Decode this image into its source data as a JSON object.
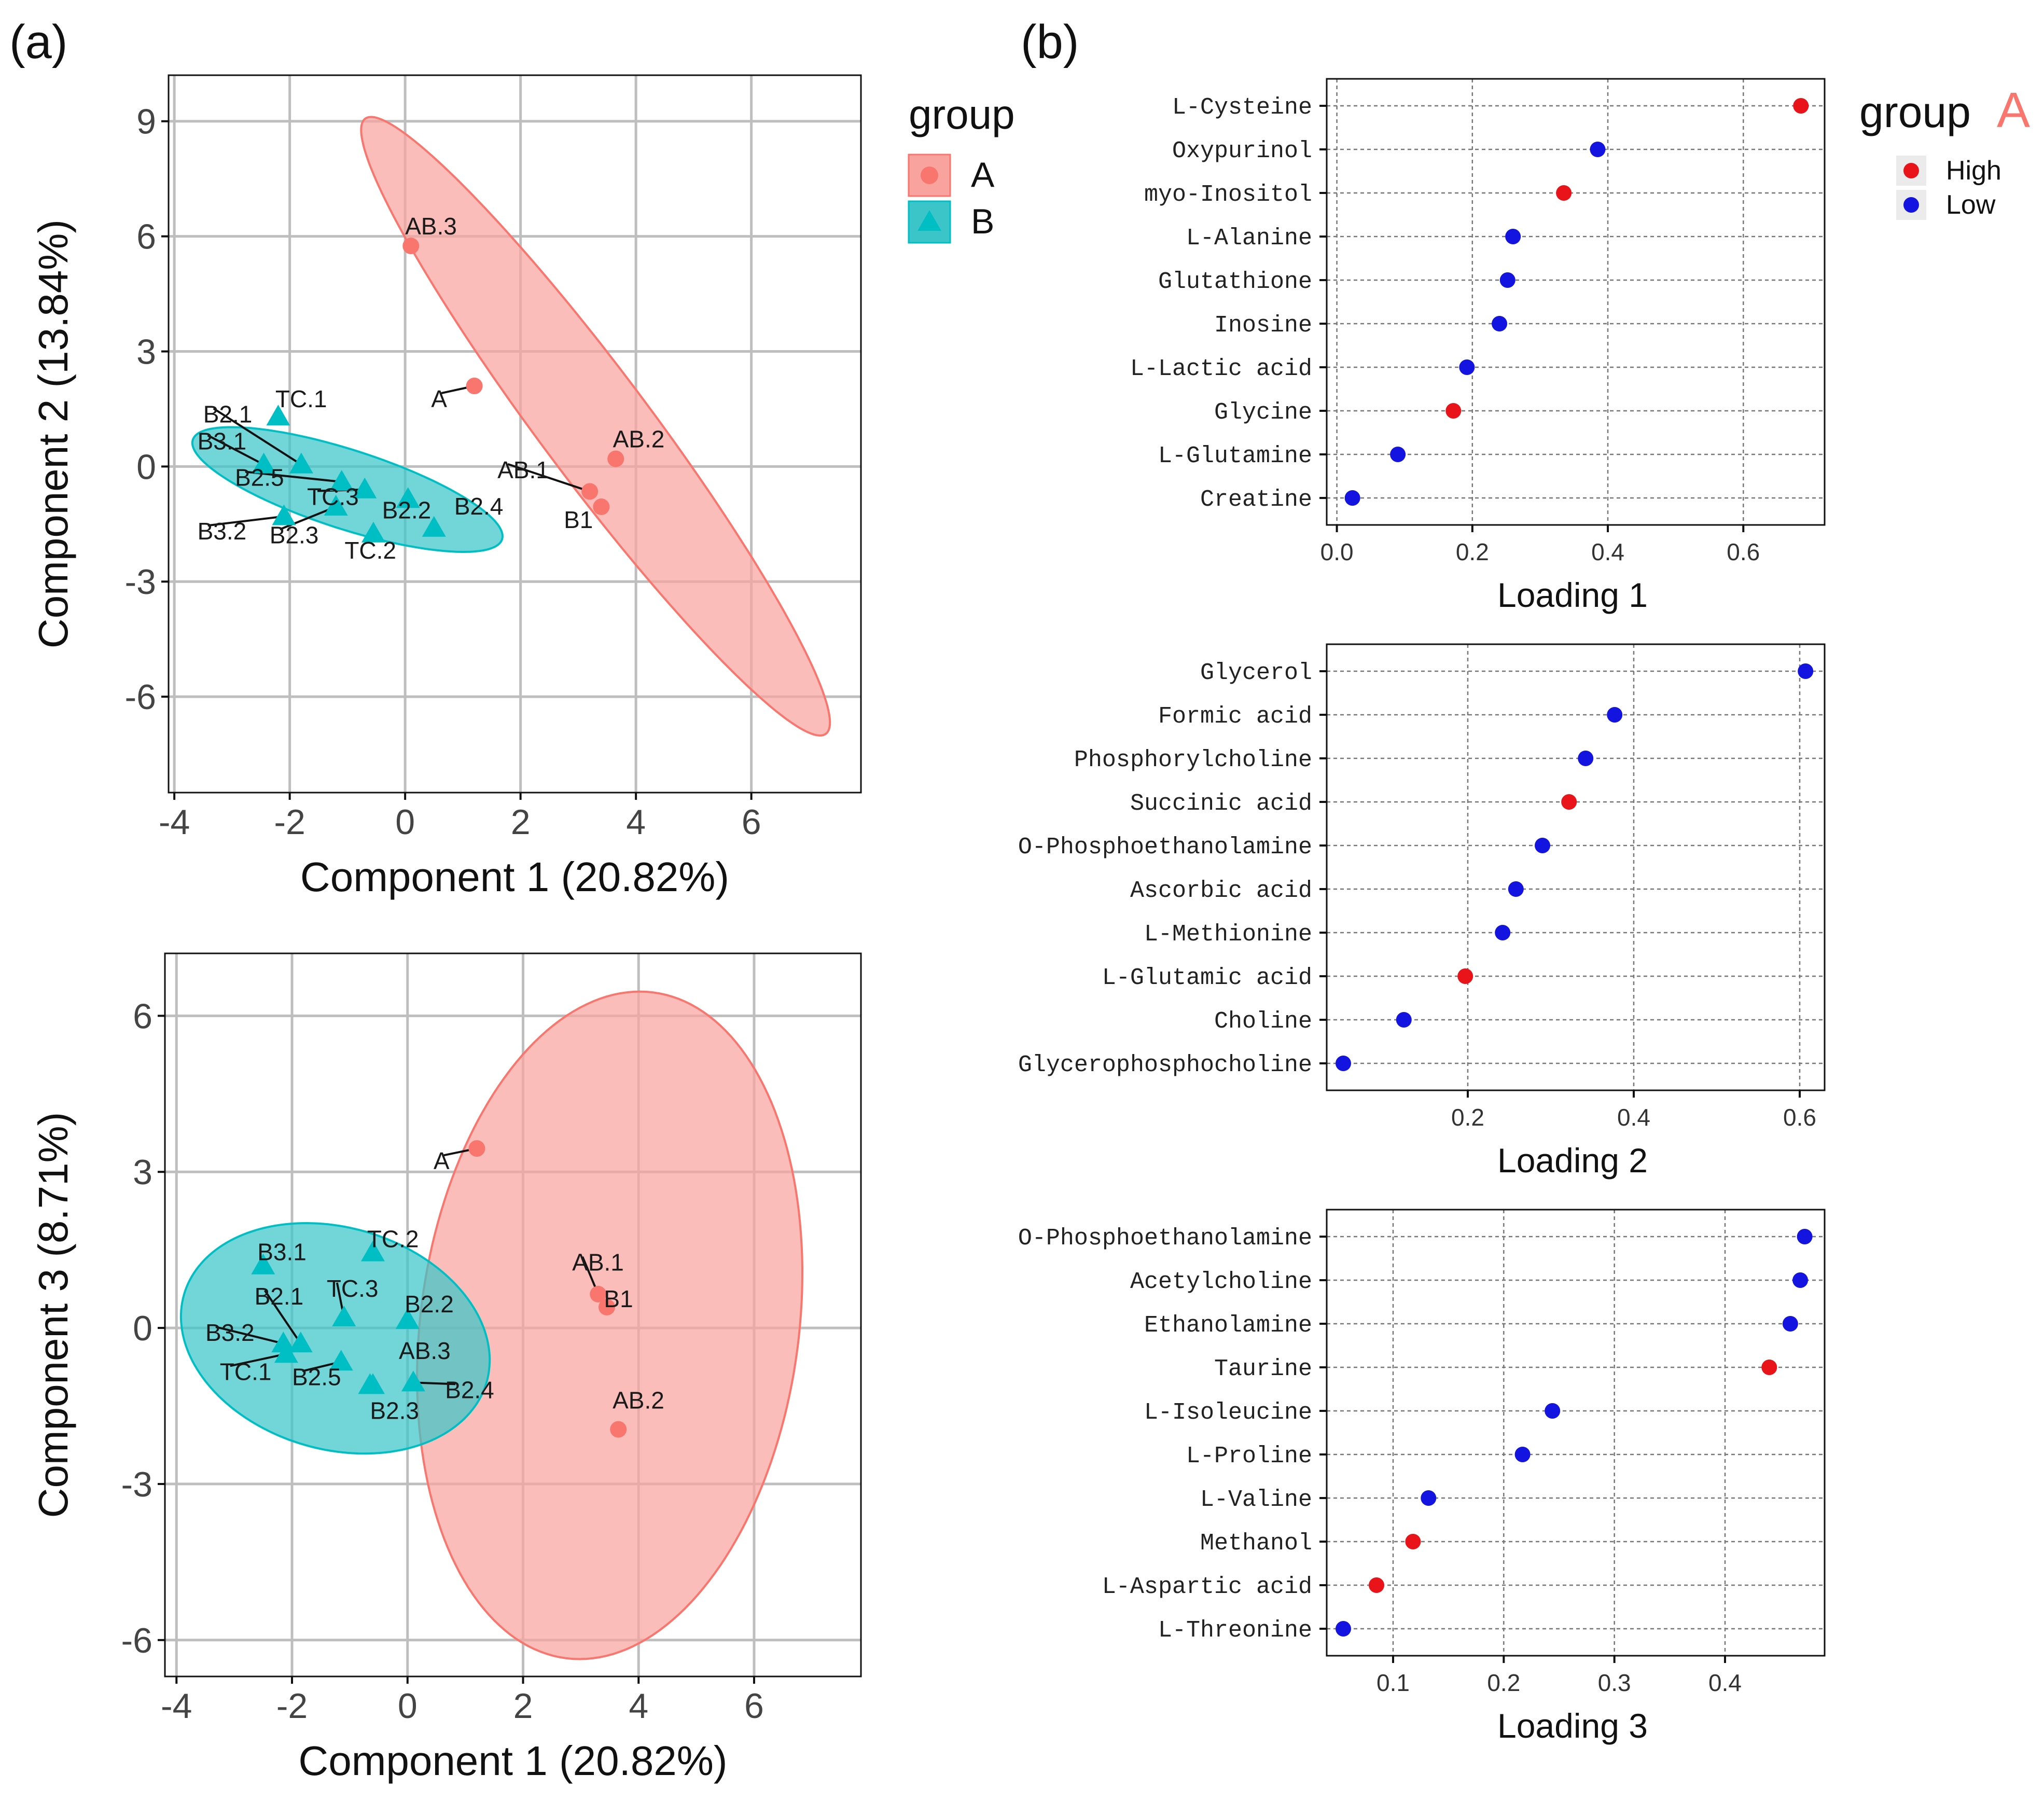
{
  "panel_labels": {
    "a": "(a)",
    "b": "(b)"
  },
  "colors": {
    "groupA": "#F8766D",
    "groupA_fill": "#F8A39E",
    "groupB": "#00BFC4",
    "groupB_fill": "#3CC5C8",
    "high": "#E8141A",
    "low": "#1414E0",
    "grid": "#BEBEBE",
    "axis": "#333333",
    "text": "#1a1a1a"
  },
  "legend_a": {
    "title": "group",
    "items": [
      {
        "label": "A",
        "shape": "circle"
      },
      {
        "label": "B",
        "shape": "triangle"
      }
    ]
  },
  "legend_b": {
    "title": "group",
    "title_group": "A",
    "items": [
      {
        "label": "High",
        "color": "high"
      },
      {
        "label": "Low",
        "color": "low"
      }
    ]
  },
  "chart_data": [
    {
      "type": "scatter",
      "id": "pca_c1_c2",
      "xlabel": "Component 1 (20.82%)",
      "ylabel": "Component 2 (13.84%)",
      "xlim": [
        -4.1,
        7.9
      ],
      "ylim": [
        -8.5,
        10.2
      ],
      "xticks": [
        -4,
        -2,
        0,
        2,
        4,
        6
      ],
      "yticks": [
        -6,
        -3,
        0,
        3,
        6,
        9
      ],
      "xticklabels": [
        "-4",
        "-2",
        "0",
        "2",
        "4",
        "6"
      ],
      "yticklabels": [
        "-6",
        "-3",
        "0",
        "3",
        "6",
        "9"
      ],
      "ellipses": [
        {
          "group": "A",
          "center": [
            3.3,
            1.05
          ],
          "axis1": [
            3.95,
            -8.05
          ],
          "axis2": [
            0.95,
            0.45
          ]
        },
        {
          "group": "B",
          "center": [
            -1.0,
            -0.6
          ],
          "axis1": [
            2.65,
            -1.38
          ],
          "axis2": [
            0.45,
            0.86
          ]
        }
      ],
      "points": [
        {
          "group": "A",
          "label": "AB.3",
          "x": 0.1,
          "y": 5.75,
          "lx": 0.0,
          "ly": 6.25,
          "leader": false
        },
        {
          "group": "A",
          "label": "A",
          "x": 1.2,
          "y": 2.1,
          "lx": 0.45,
          "ly": 1.75,
          "leader": true
        },
        {
          "group": "A",
          "label": "AB.2",
          "x": 3.65,
          "y": 0.2,
          "lx": 3.6,
          "ly": 0.7,
          "leader": false
        },
        {
          "group": "A",
          "label": "AB.1",
          "x": 3.2,
          "y": -0.65,
          "lx": 1.6,
          "ly": -0.1,
          "leader": true
        },
        {
          "group": "A",
          "label": "B1",
          "x": 3.4,
          "y": -1.05,
          "lx": 2.75,
          "ly": -1.4,
          "leader": false
        },
        {
          "group": "B",
          "label": "TC.1",
          "x": -2.2,
          "y": 1.3,
          "lx": -2.25,
          "ly": 1.75,
          "leader": false
        },
        {
          "group": "B",
          "label": "B2.1",
          "x": -1.8,
          "y": 0.05,
          "lx": -3.5,
          "ly": 1.35,
          "leader": true
        },
        {
          "group": "B",
          "label": "B3.1",
          "x": -2.45,
          "y": 0.05,
          "lx": -3.6,
          "ly": 0.65,
          "leader": true
        },
        {
          "group": "B",
          "label": "B2.5",
          "x": -1.1,
          "y": -0.4,
          "lx": -2.95,
          "ly": -0.3,
          "leader": true
        },
        {
          "group": "B",
          "label": "TC.3",
          "x": -0.7,
          "y": -0.6,
          "lx": -1.7,
          "ly": -0.8,
          "leader": true
        },
        {
          "group": "B",
          "label": "B2.2",
          "x": 0.05,
          "y": -0.85,
          "lx": -0.4,
          "ly": -1.15,
          "leader": false
        },
        {
          "group": "B",
          "label": "B2.4",
          "x": 0.5,
          "y": -1.6,
          "lx": 0.85,
          "ly": -1.05,
          "leader": false
        },
        {
          "group": "B",
          "label": "B3.2",
          "x": -2.1,
          "y": -1.3,
          "lx": -3.6,
          "ly": -1.7,
          "leader": true
        },
        {
          "group": "B",
          "label": "B2.3",
          "x": -1.2,
          "y": -1.05,
          "lx": -2.35,
          "ly": -1.8,
          "leader": true
        },
        {
          "group": "B",
          "label": "TC.2",
          "x": -0.55,
          "y": -1.75,
          "lx": -1.05,
          "ly": -2.2,
          "leader": false
        }
      ]
    },
    {
      "type": "scatter",
      "id": "pca_c1_c3",
      "xlabel": "Component 1 (20.82%)",
      "ylabel": "Component 3 (8.71%)",
      "xlim": [
        -4.2,
        7.85
      ],
      "ylim": [
        -6.7,
        7.2
      ],
      "xticks": [
        -4,
        -2,
        0,
        2,
        4,
        6
      ],
      "yticks": [
        -6,
        -3,
        0,
        3,
        6
      ],
      "xticklabels": [
        "-4",
        "-2",
        "0",
        "2",
        "4",
        "6"
      ],
      "yticklabels": [
        "-6",
        "-3",
        "0",
        "3",
        "6"
      ],
      "ellipses": [
        {
          "group": "A",
          "center": [
            3.5,
            0.05
          ],
          "axis1": [
            0.75,
            -5.95
          ],
          "axis2": [
            3.25,
            2.4
          ]
        },
        {
          "group": "B",
          "center": [
            -1.25,
            -0.2
          ],
          "axis1": [
            2.55,
            -1.05
          ],
          "axis2": [
            0.8,
            1.95
          ]
        }
      ],
      "points": [
        {
          "group": "A",
          "label": "A",
          "x": 1.2,
          "y": 3.45,
          "lx": 0.45,
          "ly": 3.2,
          "leader": true
        },
        {
          "group": "A",
          "label": "AB.1",
          "x": 3.3,
          "y": 0.65,
          "lx": 2.85,
          "ly": 1.25,
          "leader": true
        },
        {
          "group": "A",
          "label": "B1",
          "x": 3.45,
          "y": 0.4,
          "lx": 3.4,
          "ly": 0.55,
          "leader": false
        },
        {
          "group": "A",
          "label": "AB.2",
          "x": 3.65,
          "y": -1.95,
          "lx": 3.55,
          "ly": -1.4,
          "leader": false
        },
        {
          "group": "B",
          "label": "TC.2",
          "x": -0.6,
          "y": 1.45,
          "lx": -0.7,
          "ly": 1.7,
          "leader": false
        },
        {
          "group": "B",
          "label": "B3.1",
          "x": -2.5,
          "y": 1.2,
          "lx": -2.6,
          "ly": 1.45,
          "leader": false
        },
        {
          "group": "B",
          "label": "B2.1",
          "x": -1.85,
          "y": -0.3,
          "lx": -2.65,
          "ly": 0.6,
          "leader": true
        },
        {
          "group": "B",
          "label": "TC.3",
          "x": -1.1,
          "y": 0.2,
          "lx": -1.4,
          "ly": 0.75,
          "leader": true
        },
        {
          "group": "B",
          "label": "B2.2",
          "x": 0.0,
          "y": 0.15,
          "lx": -0.05,
          "ly": 0.45,
          "leader": false
        },
        {
          "group": "B",
          "label": "B3.2",
          "x": -2.15,
          "y": -0.3,
          "lx": -3.5,
          "ly": -0.1,
          "leader": true
        },
        {
          "group": "B",
          "label": "TC.1",
          "x": -2.1,
          "y": -0.5,
          "lx": -3.25,
          "ly": -0.85,
          "leader": true
        },
        {
          "group": "B",
          "label": "B2.5",
          "x": -1.15,
          "y": -0.65,
          "lx": -2.0,
          "ly": -0.95,
          "leader": true
        },
        {
          "group": "B",
          "label": "AB.3",
          "x": -0.65,
          "y": -1.1,
          "lx": -0.15,
          "ly": -0.45,
          "leader": false
        },
        {
          "group": "B",
          "label": "B2.4",
          "x": 0.1,
          "y": -1.05,
          "lx": 0.65,
          "ly": -1.2,
          "leader": true
        },
        {
          "group": "B",
          "label": "B2.3",
          "x": -0.6,
          "y": -1.1,
          "lx": -0.65,
          "ly": -1.6,
          "leader": false
        }
      ]
    },
    {
      "type": "dot",
      "id": "loading_1",
      "xlabel": "Loading 1",
      "xlim": [
        -0.015,
        0.72
      ],
      "xticks": [
        0.0,
        0.2,
        0.4,
        0.6
      ],
      "xticklabels": [
        "0.0",
        "0.2",
        "0.4",
        "0.6"
      ],
      "items": [
        {
          "name": "L-Cysteine",
          "value": 0.685,
          "level": "High"
        },
        {
          "name": "Oxypurinol",
          "value": 0.385,
          "level": "Low"
        },
        {
          "name": "myo-Inositol",
          "value": 0.335,
          "level": "High"
        },
        {
          "name": "L-Alanine",
          "value": 0.26,
          "level": "Low"
        },
        {
          "name": "Glutathione",
          "value": 0.252,
          "level": "Low"
        },
        {
          "name": "Inosine",
          "value": 0.24,
          "level": "Low"
        },
        {
          "name": "L-Lactic acid",
          "value": 0.192,
          "level": "Low"
        },
        {
          "name": "Glycine",
          "value": 0.172,
          "level": "High"
        },
        {
          "name": "L-Glutamine",
          "value": 0.09,
          "level": "Low"
        },
        {
          "name": "Creatine",
          "value": 0.023,
          "level": "Low"
        }
      ]
    },
    {
      "type": "dot",
      "id": "loading_2",
      "xlabel": "Loading 2",
      "xlim": [
        0.03,
        0.63
      ],
      "xticks": [
        0.2,
        0.4,
        0.6
      ],
      "xticklabels": [
        "0.2",
        "0.4",
        "0.6"
      ],
      "items": [
        {
          "name": "Glycerol",
          "value": 0.607,
          "level": "Low"
        },
        {
          "name": "Formic acid",
          "value": 0.377,
          "level": "Low"
        },
        {
          "name": "Phosphorylcholine",
          "value": 0.342,
          "level": "Low"
        },
        {
          "name": "Succinic acid",
          "value": 0.322,
          "level": "High"
        },
        {
          "name": "O-Phosphoethanolamine",
          "value": 0.29,
          "level": "Low"
        },
        {
          "name": "Ascorbic acid",
          "value": 0.258,
          "level": "Low"
        },
        {
          "name": "L-Methionine",
          "value": 0.242,
          "level": "Low"
        },
        {
          "name": "L-Glutamic acid",
          "value": 0.197,
          "level": "High"
        },
        {
          "name": "Choline",
          "value": 0.123,
          "level": "Low"
        },
        {
          "name": "Glycerophosphocholine",
          "value": 0.05,
          "level": "Low"
        }
      ]
    },
    {
      "type": "dot",
      "id": "loading_3",
      "xlabel": "Loading 3",
      "xlim": [
        0.04,
        0.49
      ],
      "xticks": [
        0.1,
        0.2,
        0.3,
        0.4
      ],
      "xticklabels": [
        "0.1",
        "0.2",
        "0.3",
        "0.4"
      ],
      "items": [
        {
          "name": "O-Phosphoethanolamine",
          "value": 0.472,
          "level": "Low"
        },
        {
          "name": "Acetylcholine",
          "value": 0.468,
          "level": "Low"
        },
        {
          "name": "Ethanolamine",
          "value": 0.459,
          "level": "Low"
        },
        {
          "name": "Taurine",
          "value": 0.44,
          "level": "High"
        },
        {
          "name": "L-Isoleucine",
          "value": 0.244,
          "level": "Low"
        },
        {
          "name": "L-Proline",
          "value": 0.217,
          "level": "Low"
        },
        {
          "name": "L-Valine",
          "value": 0.132,
          "level": "Low"
        },
        {
          "name": "Methanol",
          "value": 0.118,
          "level": "High"
        },
        {
          "name": "L-Aspartic acid",
          "value": 0.085,
          "level": "High"
        },
        {
          "name": "L-Threonine",
          "value": 0.055,
          "level": "Low"
        }
      ]
    }
  ]
}
